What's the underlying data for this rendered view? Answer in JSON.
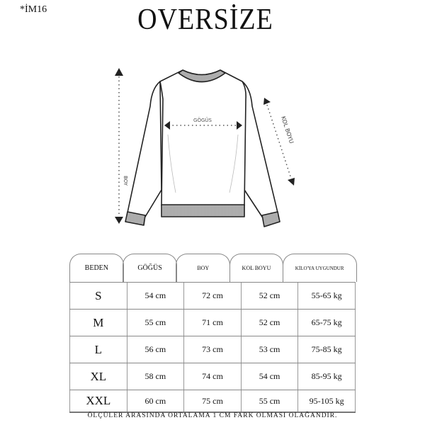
{
  "header": {
    "code": "*İM16",
    "title": "OVERSİZE"
  },
  "diagram": {
    "chest_label": "GÖGÜS",
    "length_label": "BOY",
    "sleeve_label": "KOL BOYU"
  },
  "table": {
    "headers": [
      "BEDEN",
      "GÖĞÜS",
      "BOY",
      "KOL BOYU",
      "KİLO'YA UYGUNDUR"
    ],
    "rows": [
      [
        "S",
        "54 cm",
        "72 cm",
        "52  cm",
        "55-65 kg"
      ],
      [
        "M",
        "55 cm",
        "71 cm",
        "52 cm",
        "65-75 kg"
      ],
      [
        "L",
        "56 cm",
        "73 cm",
        "53 cm",
        "75-85 kg"
      ],
      [
        "XL",
        "58 cm",
        "74 cm",
        "54 cm",
        "85-95 kg"
      ],
      [
        "XXL",
        "60 cm",
        "75 cm",
        "55 cm",
        "95-105 kg"
      ]
    ]
  },
  "footer": "ÖLÇÜLER ARASINDA ORTALAMA 1 CM FARK OLMASI OLAĞANDIR."
}
